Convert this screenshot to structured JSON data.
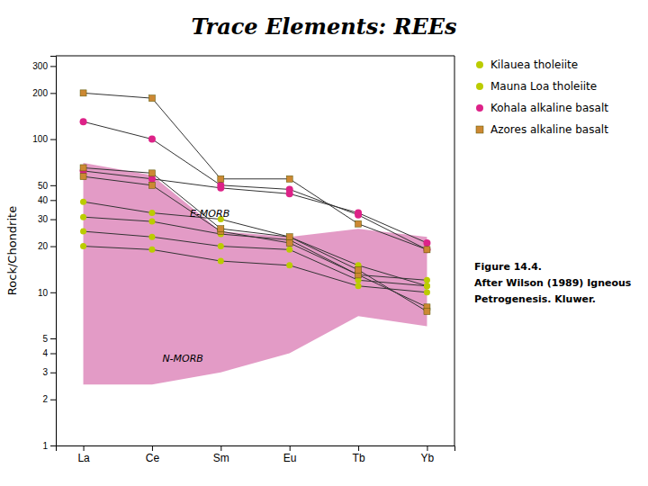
{
  "chart_data": {
    "type": "line",
    "title": "Trace Elements: REEs",
    "y_label": "Rock/Chondrite",
    "categories": [
      "La",
      "Ce",
      "Sm",
      "Eu",
      "Tb",
      "Yb"
    ],
    "log": "y",
    "ylim": [
      1,
      350
    ],
    "yticks": [
      1,
      2,
      3,
      4,
      5,
      10,
      20,
      30,
      40,
      50,
      100,
      200,
      300
    ],
    "grid": false,
    "legend": "right",
    "morb_range": {
      "lower": [
        2.5,
        2.5,
        3.0,
        4.0,
        7.0,
        6.0
      ],
      "upper": [
        70,
        58,
        25,
        23,
        26,
        23
      ],
      "color": "#e090c0"
    },
    "annotations": [
      {
        "text": "E-MORB",
        "x": 1.55,
        "y": 31
      },
      {
        "text": "N-MORB",
        "x": 1.15,
        "y": 3.5
      }
    ],
    "caption": [
      "Figure 14.4.",
      "After Wilson (1989) Igneous",
      "Petrogenesis. Kluwer."
    ],
    "series": [
      {
        "name": "Kilauea tholeiite",
        "color": "#bbcc00",
        "marker": "circle",
        "values": [
          25,
          23,
          20,
          19,
          12,
          11
        ]
      },
      {
        "name": "Mauna Loa tholeiite",
        "color": "#bbcc00",
        "marker": "circle",
        "values": [
          20,
          19,
          16,
          15,
          11,
          10
        ]
      },
      {
        "name": "Mauna Loa tholeiite",
        "color": "#bbcc00",
        "marker": "circle",
        "values": [
          31,
          29,
          24,
          22,
          13,
          12
        ]
      },
      {
        "name": "Mauna Loa tholeiite",
        "color": "#bbcc00",
        "marker": "circle",
        "values": [
          39,
          33,
          30,
          23,
          15,
          11
        ]
      },
      {
        "name": "Kohala alkaline basalt",
        "color": "#dd2288",
        "marker": "circle",
        "values": [
          130,
          100,
          50,
          47,
          32,
          19
        ]
      },
      {
        "name": "Kohala alkaline basalt",
        "color": "#dd2288",
        "marker": "circle",
        "values": [
          62,
          55,
          48,
          44,
          33,
          21
        ]
      },
      {
        "name": "Azores alkaline basalt",
        "color": "#cc8833",
        "marker": "square",
        "values": [
          200,
          185,
          55,
          55,
          28,
          19
        ]
      },
      {
        "name": "Azores alkaline basalt",
        "color": "#cc8833",
        "marker": "square",
        "values": [
          57,
          50,
          25,
          21,
          13,
          8
        ]
      },
      {
        "name": "Azores alkaline basalt",
        "color": "#cc8833",
        "marker": "square",
        "values": [
          65,
          60,
          26,
          23,
          14,
          7.5
        ]
      }
    ]
  }
}
